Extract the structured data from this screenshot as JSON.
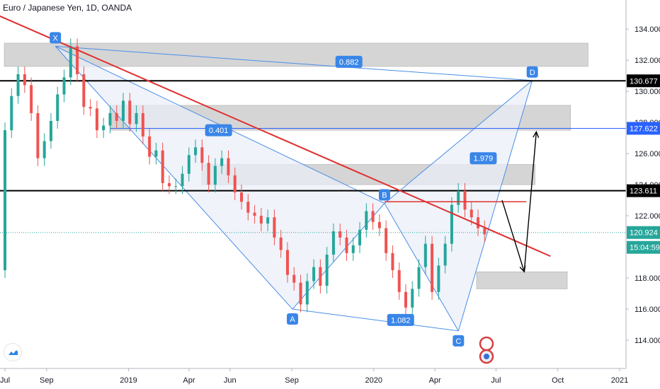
{
  "header": {
    "title": "Euro / Japanese Yen, 1D, OANDA"
  },
  "colors": {
    "candle_up": "#26a69a",
    "candle_down": "#ef5350",
    "pattern_line": "#4a8ee8",
    "pattern_fill": "#e9eef8",
    "zone_fill": "#d0d0d0",
    "trendline": "#e03030",
    "level_black": "#000000",
    "level_blue": "#2962ff",
    "current_price_line": "#26a69a",
    "label_bg": "#3a86e8"
  },
  "icons": {
    "logo": "tradingview-cloud-icon",
    "author_badge": "author-avatar-icon"
  },
  "chart_data": {
    "type": "candlestick",
    "symbol": "EURJPY",
    "interval": "1D",
    "exchange": "OANDA",
    "y_axis": {
      "range": [
        113.0,
        135.6
      ],
      "ticks": [
        "134.000",
        "132.000",
        "130.000",
        "128.000",
        "126.000",
        "124.000",
        "122.000",
        "120.000",
        "118.000",
        "116.000",
        "114.000"
      ]
    },
    "x_axis": {
      "ticks": [
        {
          "label": "Jul",
          "date": "2018-07-01"
        },
        {
          "label": "Sep",
          "date": "2018-09-01"
        },
        {
          "label": "2019",
          "date": "2019-01-01"
        },
        {
          "label": "Apr",
          "date": "2019-04-01"
        },
        {
          "label": "Jun",
          "date": "2019-06-01"
        },
        {
          "label": "Sep",
          "date": "2019-09-01"
        },
        {
          "label": "2020",
          "date": "2020-01-01"
        },
        {
          "label": "Apr",
          "date": "2020-04-01"
        },
        {
          "label": "Jul",
          "date": "2020-07-01"
        },
        {
          "label": "Oct",
          "date": "2020-10-01"
        },
        {
          "label": "2021",
          "date": "2021-01-01"
        }
      ]
    },
    "price_labels": [
      {
        "text": "130.677",
        "price": 130.677,
        "style": "black"
      },
      {
        "text": "127.622",
        "price": 127.622,
        "style": "blue"
      },
      {
        "text": "123.611",
        "price": 123.611,
        "style": "black"
      },
      {
        "text": "120.924",
        "price": 120.924,
        "style": "green"
      },
      {
        "text": "15:04:59",
        "price": 120.15,
        "style": "green"
      }
    ],
    "harmonic_pattern": {
      "points": [
        {
          "label": "X",
          "date": "2018-09-14",
          "price": 132.9
        },
        {
          "label": "A",
          "date": "2019-09-02",
          "price": 116.0
        },
        {
          "label": "B",
          "date": "2020-01-17",
          "price": 122.8
        },
        {
          "label": "C",
          "date": "2020-05-06",
          "price": 114.6
        },
        {
          "label": "D",
          "date": "2020-08-24",
          "price": 130.7
        }
      ],
      "ratios": [
        {
          "text": "0.882",
          "date": "2019-11-25",
          "price": 131.9
        },
        {
          "text": "0.401",
          "date": "2019-05-15",
          "price": 127.5
        },
        {
          "text": "1.979",
          "date": "2020-06-12",
          "price": 125.7
        },
        {
          "text": "1.082",
          "date": "2020-02-10",
          "price": 115.3
        }
      ]
    },
    "zones": [
      {
        "from": "2018-06-30",
        "to": "2020-11-15",
        "top": 133.1,
        "bottom": 131.6
      },
      {
        "from": "2018-12-05",
        "to": "2020-10-20",
        "top": 129.1,
        "bottom": 127.5
      },
      {
        "from": "2019-04-20",
        "to": "2020-08-28",
        "top": 125.3,
        "bottom": 124.0
      },
      {
        "from": "2020-06-02",
        "to": "2020-10-15",
        "top": 118.4,
        "bottom": 117.3
      }
    ],
    "levels": [
      {
        "price": 130.677,
        "color": "black"
      },
      {
        "price": 127.622,
        "color": "blue"
      },
      {
        "price": 123.611,
        "color": "black"
      },
      {
        "price": 120.924,
        "color": "green-dotted"
      }
    ],
    "trendlines": [
      {
        "from_date": "2018-06-20",
        "from_price": 134.9,
        "to_date": "2020-09-20",
        "to_price": 119.4
      },
      {
        "from_date": "2020-01-17",
        "from_price": 122.9,
        "to_date": "2020-08-15",
        "to_price": 122.9
      }
    ],
    "projection_arrow": [
      {
        "date": "2020-07-10",
        "price": 123.0
      },
      {
        "date": "2020-08-12",
        "price": 118.4
      },
      {
        "date": "2020-08-30",
        "price": 127.4
      }
    ],
    "candles": [
      [
        118.5,
        127.5
      ],
      [
        127.5,
        129.7
      ],
      [
        129.7,
        131.1
      ],
      [
        131.1,
        130.4
      ],
      [
        130.4,
        128.6
      ],
      [
        128.6,
        125.7
      ],
      [
        125.7,
        126.8
      ],
      [
        126.8,
        128.1
      ],
      [
        128.1,
        129.8
      ],
      [
        129.8,
        130.9
      ],
      [
        130.9,
        132.9
      ],
      [
        132.9,
        131.1
      ],
      [
        131.1,
        129.0
      ],
      [
        129.0,
        128.9
      ],
      [
        128.9,
        127.5
      ],
      [
        127.5,
        127.8
      ],
      [
        127.8,
        128.6
      ],
      [
        128.6,
        128.1
      ],
      [
        128.1,
        129.4
      ],
      [
        129.4,
        127.9
      ],
      [
        127.9,
        128.6
      ],
      [
        128.6,
        127.1
      ],
      [
        127.1,
        125.8
      ],
      [
        125.8,
        126.2
      ],
      [
        126.2,
        124.1
      ],
      [
        124.1,
        123.9
      ],
      [
        123.9,
        123.9
      ],
      [
        123.9,
        124.7
      ],
      [
        124.7,
        125.9
      ],
      [
        125.9,
        126.4
      ],
      [
        126.4,
        125.4
      ],
      [
        125.4,
        124.0
      ],
      [
        124.0,
        125.2
      ],
      [
        125.2,
        125.7
      ],
      [
        125.7,
        124.6
      ],
      [
        124.6,
        123.5
      ],
      [
        123.5,
        122.9
      ],
      [
        122.9,
        122.2
      ],
      [
        122.2,
        122.0
      ],
      [
        122.0,
        121.5
      ],
      [
        121.5,
        121.9
      ],
      [
        121.9,
        120.6
      ],
      [
        120.6,
        119.8
      ],
      [
        119.8,
        118.2
      ],
      [
        118.2,
        117.7
      ],
      [
        117.7,
        116.3
      ],
      [
        116.3,
        117.8
      ],
      [
        117.8,
        118.7
      ],
      [
        118.7,
        117.5
      ],
      [
        117.5,
        119.5
      ],
      [
        119.5,
        121.0
      ],
      [
        121.0,
        120.6
      ],
      [
        120.6,
        119.6
      ],
      [
        119.6,
        120.1
      ],
      [
        120.1,
        121.1
      ],
      [
        121.1,
        122.3
      ],
      [
        122.3,
        121.6
      ],
      [
        121.6,
        121.2
      ],
      [
        121.2,
        119.6
      ],
      [
        119.6,
        118.5
      ],
      [
        118.5,
        117.1
      ],
      [
        117.1,
        116.1
      ],
      [
        116.1,
        117.3
      ],
      [
        117.3,
        118.7
      ],
      [
        118.7,
        120.2
      ],
      [
        120.2,
        117.1
      ],
      [
        117.1,
        118.8
      ],
      [
        118.8,
        120.2
      ],
      [
        120.2,
        122.7
      ],
      [
        122.7,
        123.6
      ],
      [
        123.6,
        122.4
      ],
      [
        122.4,
        121.9
      ],
      [
        121.9,
        121.2
      ],
      [
        121.2,
        120.8
      ]
    ]
  }
}
